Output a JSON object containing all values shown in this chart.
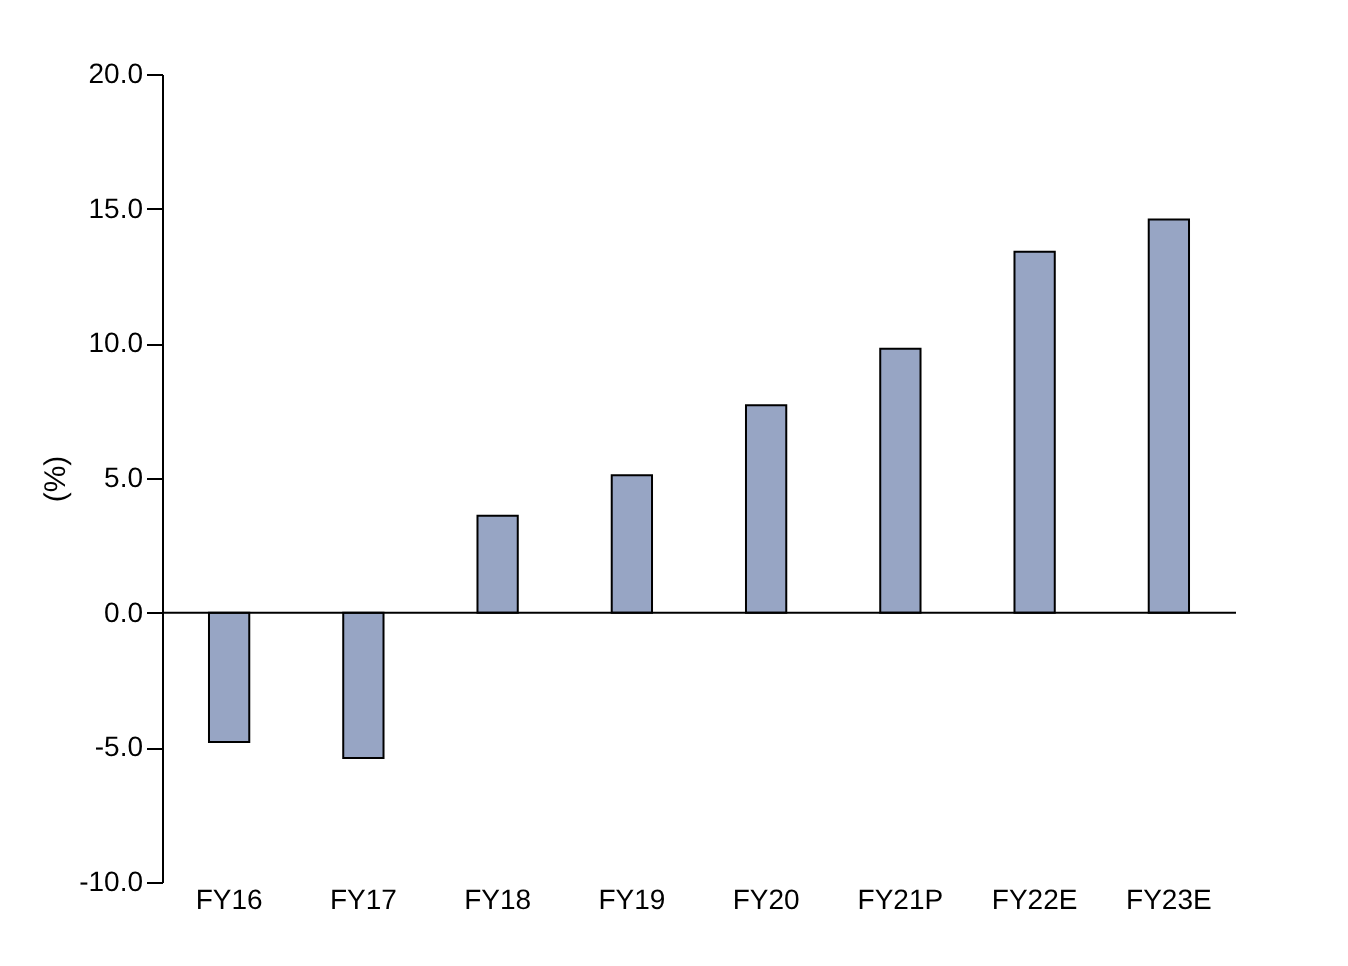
{
  "chart_data": {
    "type": "bar",
    "ylabel": "(%)",
    "categories": [
      "FY16",
      "FY17",
      "FY18",
      "FY19",
      "FY20",
      "FY21P",
      "FY22E",
      "FY23E"
    ],
    "values": [
      -4.8,
      -5.4,
      3.6,
      5.1,
      7.7,
      9.8,
      13.4,
      14.6
    ],
    "color": "#97a5c4",
    "ylim": [
      -10,
      20
    ],
    "yticks": [
      {
        "value": -10,
        "label": "-10.0"
      },
      {
        "value": -5,
        "label": "-5.0"
      },
      {
        "value": 0,
        "label": "0.0"
      },
      {
        "value": 5,
        "label": "5.0"
      },
      {
        "value": 10,
        "label": "10.0"
      },
      {
        "value": 15,
        "label": "15.0"
      },
      {
        "value": 20,
        "label": "20.0"
      }
    ]
  }
}
